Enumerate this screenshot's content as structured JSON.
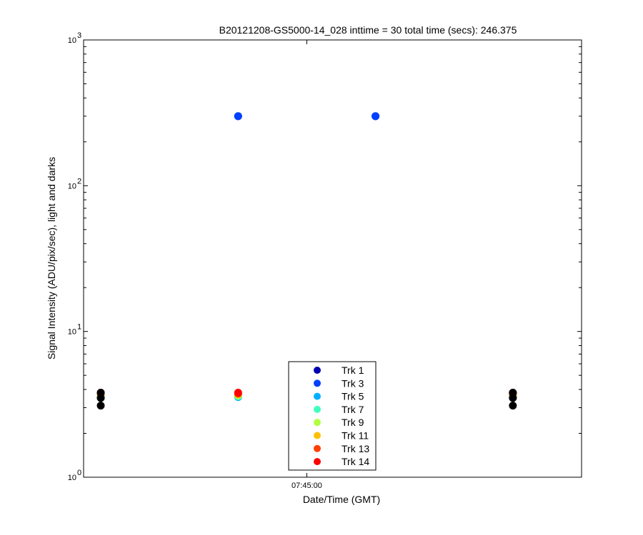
{
  "chart_data": {
    "type": "scatter",
    "title": "B20121208-GS5000-14_028 inttime = 30 total time (secs): 246.375",
    "xlabel": "Date/Time (GMT)",
    "ylabel": "Signal Intensity (ADU/pix/sec), light and darks",
    "y_scale": "log",
    "ylim": [
      1,
      1000
    ],
    "y_ticks": [
      {
        "value": 1,
        "base": "10",
        "exp": "0"
      },
      {
        "value": 10,
        "base": "10",
        "exp": "1"
      },
      {
        "value": 100,
        "base": "10",
        "exp": "2"
      },
      {
        "value": 1000,
        "base": "10",
        "exp": "3"
      }
    ],
    "x_ticks": [
      "07:45:00"
    ],
    "grid": false,
    "legend_position": "bottom-center",
    "series": [
      {
        "name": "Trk 1",
        "color": "#0000b0",
        "points": [
          [
            "07:44:00",
            3.6
          ],
          [
            "07:44:40",
            300
          ],
          [
            "07:45:20",
            300
          ],
          [
            "07:46:00",
            3.6
          ]
        ]
      },
      {
        "name": "Trk 3",
        "color": "#0040ff",
        "points": [
          [
            "07:44:00",
            3.7
          ],
          [
            "07:44:40",
            300
          ],
          [
            "07:45:20",
            300
          ],
          [
            "07:46:00",
            3.7
          ]
        ]
      },
      {
        "name": "Trk 5",
        "color": "#00b0ff",
        "points": [
          [
            "07:44:00",
            3.5
          ],
          [
            "07:44:40",
            3.55
          ],
          [
            "07:46:00",
            3.5
          ]
        ]
      },
      {
        "name": "Trk 7",
        "color": "#40ffc0",
        "points": [
          [
            "07:44:00",
            3.55
          ],
          [
            "07:44:40",
            3.6
          ],
          [
            "07:46:00",
            3.55
          ]
        ]
      },
      {
        "name": "Trk 9",
        "color": "#b0ff40",
        "points": [
          [
            "07:44:00",
            3.65
          ],
          [
            "07:44:40",
            3.65
          ],
          [
            "07:46:00",
            3.65
          ]
        ]
      },
      {
        "name": "Trk 11",
        "color": "#ffc000",
        "points": [
          [
            "07:44:00",
            3.7
          ],
          [
            "07:44:40",
            3.7
          ],
          [
            "07:46:00",
            3.7
          ]
        ]
      },
      {
        "name": "Trk 13",
        "color": "#ff4000",
        "points": [
          [
            "07:44:00",
            3.75
          ],
          [
            "07:44:40",
            3.75
          ],
          [
            "07:46:00",
            3.75
          ]
        ]
      },
      {
        "name": "Trk 14",
        "color": "#ff0000",
        "points": [
          [
            "07:44:00",
            3.8
          ],
          [
            "07:44:40",
            3.8
          ],
          [
            "07:46:00",
            3.8
          ]
        ]
      },
      {
        "name": "",
        "color": "#000000",
        "points": [
          [
            "07:44:00",
            3.1
          ],
          [
            "07:44:00",
            3.5
          ],
          [
            "07:44:00",
            3.8
          ],
          [
            "07:46:00",
            3.1
          ],
          [
            "07:46:00",
            3.5
          ],
          [
            "07:46:00",
            3.8
          ]
        ]
      }
    ]
  }
}
